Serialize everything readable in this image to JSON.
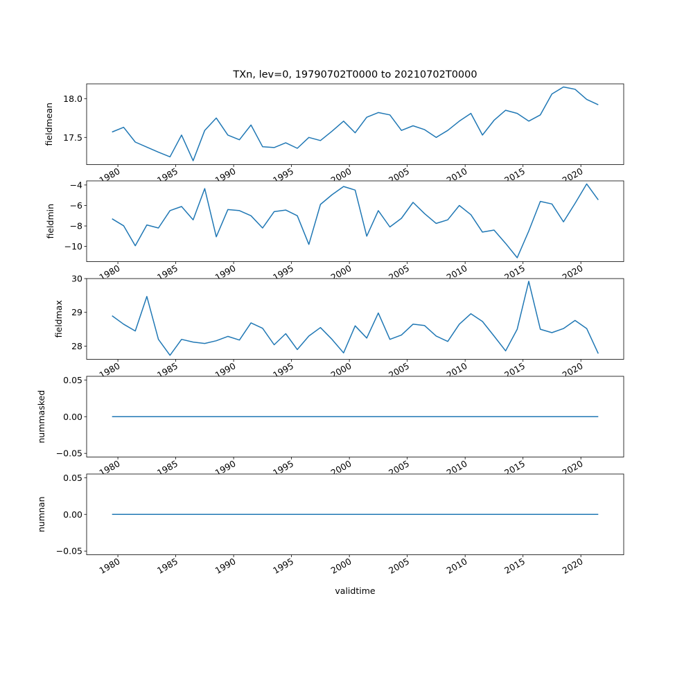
{
  "chart_data": {
    "type": "line",
    "title": "TXn, lev=0, 19790702T0000 to 20210702T0000",
    "xlabel": "validtime",
    "xlim": [
      1977.3,
      2023.7
    ],
    "x_ticks": [
      1980,
      1985,
      1990,
      1995,
      2000,
      2005,
      2010,
      2015,
      2020
    ],
    "x_tick_labels": [
      "1980",
      "1985",
      "1990",
      "1995",
      "2000",
      "2005",
      "2010",
      "2015",
      "2020"
    ],
    "x": [
      1979.5,
      1980.5,
      1981.5,
      1982.5,
      1983.5,
      1984.5,
      1985.5,
      1986.5,
      1987.5,
      1988.5,
      1989.5,
      1990.5,
      1991.5,
      1992.5,
      1993.5,
      1994.5,
      1995.5,
      1996.5,
      1997.5,
      1998.5,
      1999.5,
      2000.5,
      2001.5,
      2002.5,
      2003.5,
      2004.5,
      2005.5,
      2006.5,
      2007.5,
      2008.5,
      2009.5,
      2010.5,
      2011.5,
      2012.5,
      2013.5,
      2014.5,
      2015.5,
      2016.5,
      2017.5,
      2018.5,
      2019.5,
      2020.5,
      2021.5
    ],
    "color": "#1f77b4",
    "panels": [
      {
        "ylabel": "fieldmean",
        "ylim": [
          17.15,
          18.19
        ],
        "y_ticks": [
          17.5,
          18.0
        ],
        "y_tick_labels": [
          "17.5",
          "18.0"
        ],
        "values": [
          17.57,
          17.63,
          17.44,
          17.375,
          17.31,
          17.25,
          17.53,
          17.2,
          17.59,
          17.75,
          17.53,
          17.47,
          17.66,
          17.38,
          17.37,
          17.43,
          17.36,
          17.5,
          17.46,
          17.58,
          17.71,
          17.56,
          17.76,
          17.82,
          17.79,
          17.59,
          17.65,
          17.6,
          17.5,
          17.59,
          17.71,
          17.81,
          17.53,
          17.72,
          17.85,
          17.81,
          17.71,
          17.79,
          18.06,
          18.15,
          18.12,
          17.99,
          17.92
        ]
      },
      {
        "ylabel": "fieldmin",
        "ylim": [
          -11.48,
          -3.6
        ],
        "y_ticks": [
          -10,
          -8,
          -6,
          -4
        ],
        "y_tick_labels": [
          "−10",
          "−8",
          "−6",
          "−4"
        ],
        "values": [
          -7.3,
          -7.98,
          -9.93,
          -7.9,
          -8.2,
          -6.5,
          -6.1,
          -7.4,
          -4.35,
          -9.06,
          -6.4,
          -6.5,
          -7.0,
          -8.2,
          -6.6,
          -6.45,
          -7.0,
          -9.8,
          -5.9,
          -4.95,
          -4.15,
          -4.5,
          -9.0,
          -6.5,
          -8.1,
          -7.25,
          -5.7,
          -6.8,
          -7.75,
          -7.4,
          -6.0,
          -6.9,
          -8.6,
          -8.4,
          -9.7,
          -11.1,
          -8.5,
          -5.6,
          -5.85,
          -7.6,
          -5.8,
          -3.9,
          -5.45
        ]
      },
      {
        "ylabel": "fieldmax",
        "ylim": [
          27.61,
          30.0
        ],
        "y_ticks": [
          28,
          29,
          30
        ],
        "y_tick_labels": [
          "28",
          "29",
          "30"
        ],
        "values": [
          28.9,
          28.65,
          28.45,
          29.47,
          28.2,
          27.73,
          28.2,
          28.12,
          28.08,
          28.16,
          28.29,
          28.18,
          28.69,
          28.53,
          28.04,
          28.37,
          27.9,
          28.3,
          28.55,
          28.2,
          27.8,
          28.6,
          28.24,
          28.98,
          28.2,
          28.33,
          28.65,
          28.61,
          28.3,
          28.14,
          28.65,
          28.96,
          28.73,
          28.3,
          27.86,
          28.5,
          29.92,
          28.5,
          28.4,
          28.52,
          28.76,
          28.52,
          27.78
        ]
      },
      {
        "ylabel": "nummasked",
        "ylim": [
          -0.055,
          0.055
        ],
        "y_ticks": [
          -0.05,
          0.0,
          0.05
        ],
        "y_tick_labels": [
          "−0.05",
          "0.00",
          "0.05"
        ],
        "values": [
          0,
          0,
          0,
          0,
          0,
          0,
          0,
          0,
          0,
          0,
          0,
          0,
          0,
          0,
          0,
          0,
          0,
          0,
          0,
          0,
          0,
          0,
          0,
          0,
          0,
          0,
          0,
          0,
          0,
          0,
          0,
          0,
          0,
          0,
          0,
          0,
          0,
          0,
          0,
          0,
          0,
          0,
          0
        ]
      },
      {
        "ylabel": "numnan",
        "ylim": [
          -0.055,
          0.055
        ],
        "y_ticks": [
          -0.05,
          0.0,
          0.05
        ],
        "y_tick_labels": [
          "−0.05",
          "0.00",
          "0.05"
        ],
        "values": [
          0,
          0,
          0,
          0,
          0,
          0,
          0,
          0,
          0,
          0,
          0,
          0,
          0,
          0,
          0,
          0,
          0,
          0,
          0,
          0,
          0,
          0,
          0,
          0,
          0,
          0,
          0,
          0,
          0,
          0,
          0,
          0,
          0,
          0,
          0,
          0,
          0,
          0,
          0,
          0,
          0,
          0,
          0
        ]
      }
    ]
  }
}
